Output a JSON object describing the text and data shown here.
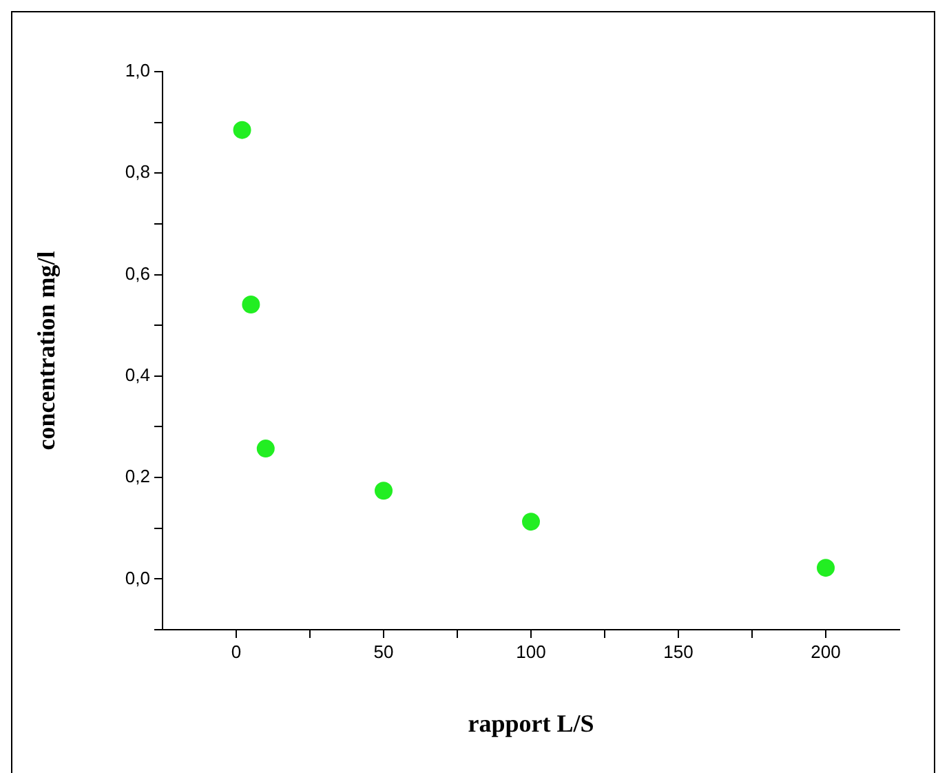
{
  "chart_data": {
    "type": "scatter",
    "xlabel": "rapport L/S",
    "ylabel": "concentration mg/l",
    "x": [
      2,
      5,
      10,
      50,
      100,
      200
    ],
    "series": [
      {
        "color": "#22ee22",
        "values": [
          0.885,
          0.541,
          0.257,
          0.174,
          0.113,
          0.022
        ]
      }
    ],
    "marker": "circle",
    "grid": false,
    "legend": false,
    "xlim": [
      -25,
      225
    ],
    "xticks": [
      0,
      {
        "value": 25,
        "label": null
      },
      50,
      {
        "value": 75,
        "label": null
      },
      100,
      {
        "value": 125,
        "label": null
      },
      150,
      {
        "value": 175,
        "label": null
      },
      200
    ],
    "ylim": [
      -0.1,
      1.0
    ],
    "yticks": [
      {
        "value": -0.1,
        "label": null
      },
      {
        "value": 0,
        "label": "0,0"
      },
      {
        "value": 0.1,
        "label": null
      },
      {
        "value": 0.2,
        "label": "0,2"
      },
      {
        "value": 0.3,
        "label": null
      },
      {
        "value": 0.4,
        "label": "0,4"
      },
      {
        "value": 0.5,
        "label": null
      },
      {
        "value": 0.6,
        "label": "0,6"
      },
      {
        "value": 0.7,
        "label": null
      },
      {
        "value": 0.8,
        "label": "0,8"
      },
      {
        "value": 0.9,
        "label": null
      },
      {
        "value": 1.0,
        "label": "1,0"
      }
    ]
  }
}
